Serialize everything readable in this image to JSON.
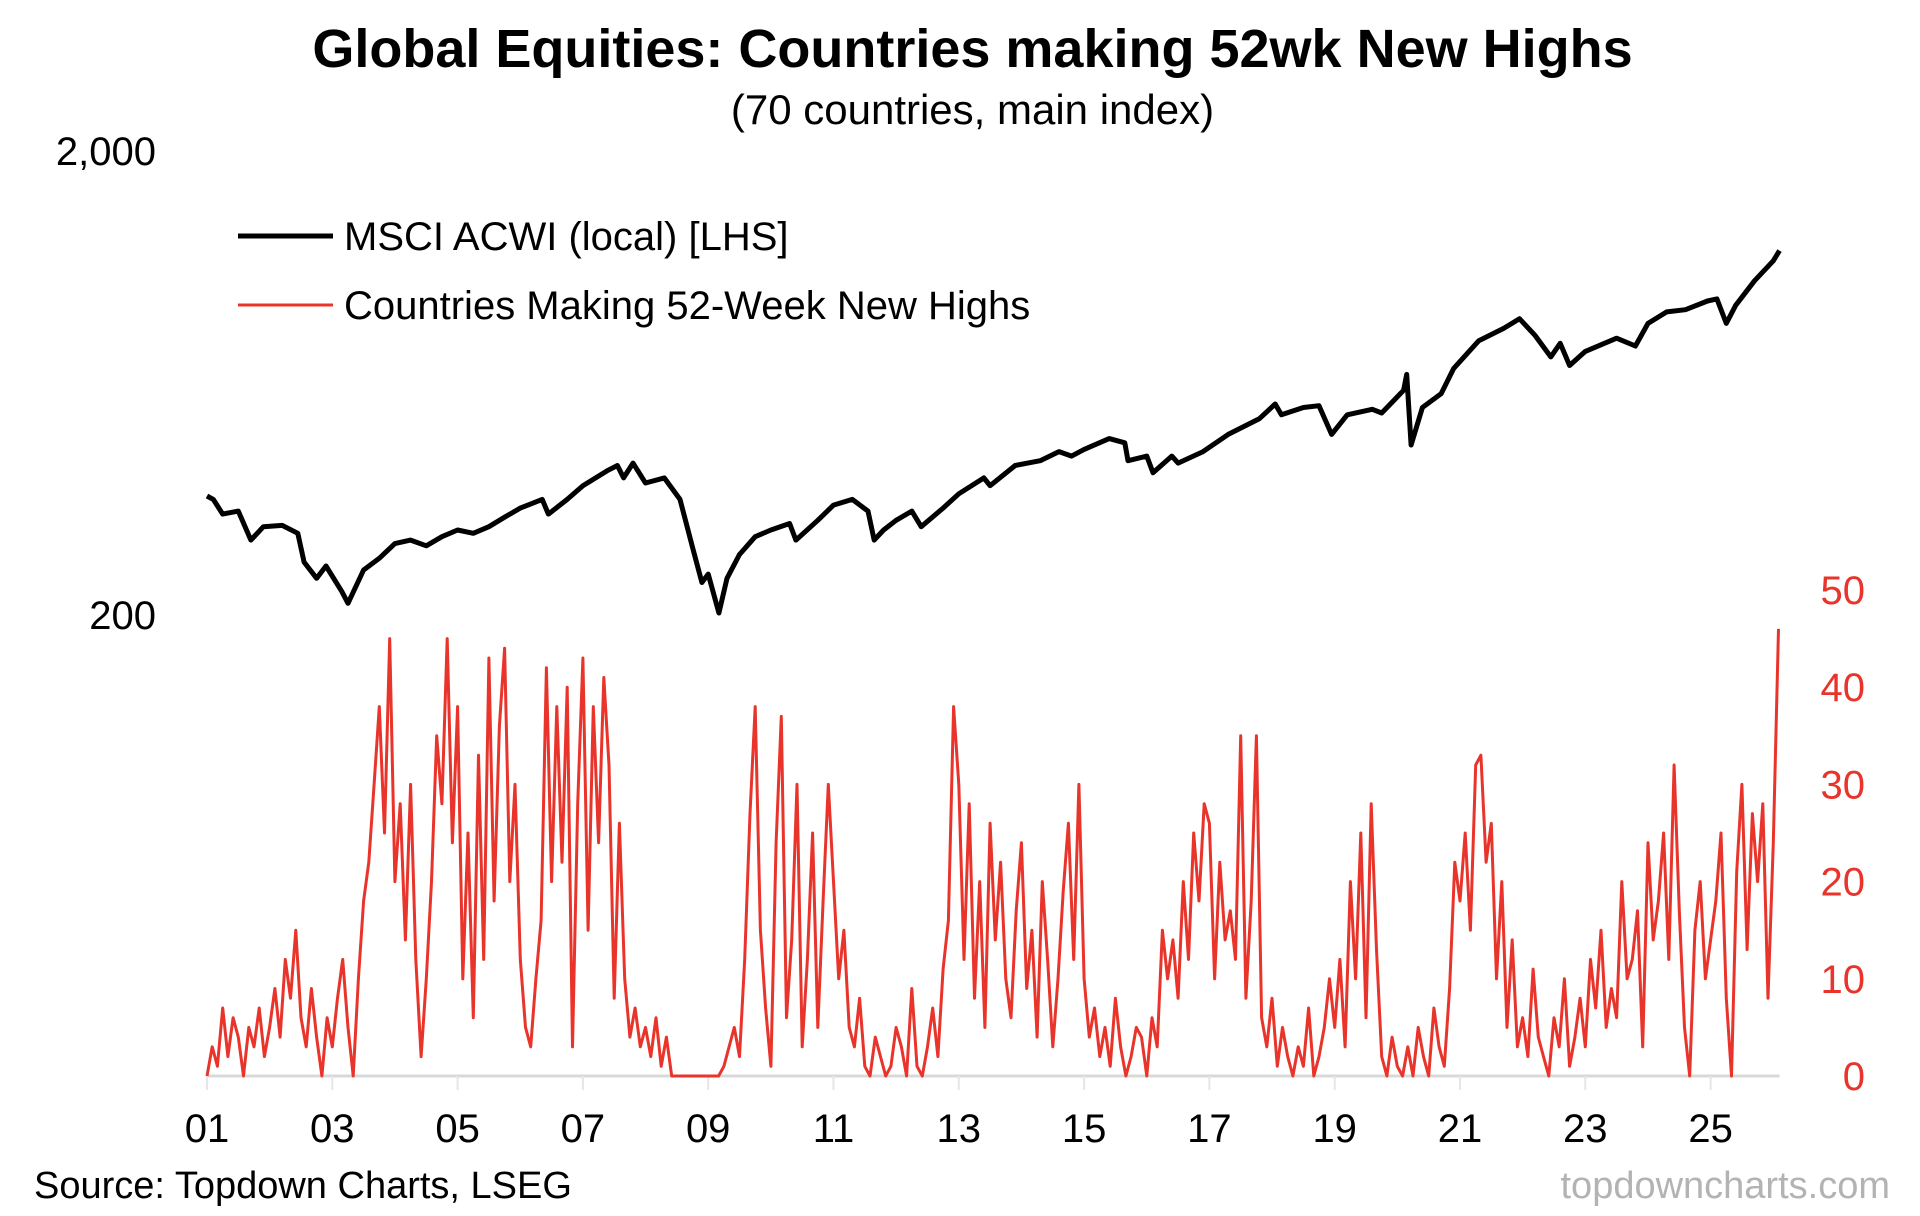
{
  "chart_data": {
    "type": "line",
    "title": "Global Equities: Countries making 52wk New Highs",
    "subtitle": "(70 countries, main index)",
    "source": "Source: Topdown Charts, LSEG",
    "watermark": "topdowncharts.com",
    "legend_placement": "top-left",
    "grid": false,
    "x_tick_labels": [
      "01",
      "03",
      "05",
      "07",
      "09",
      "11",
      "13",
      "15",
      "17",
      "19",
      "21",
      "23",
      "25"
    ],
    "x_ticks_years": [
      2001,
      2003,
      2005,
      2007,
      2009,
      2011,
      2013,
      2015,
      2017,
      2019,
      2021,
      2023,
      2025
    ],
    "left_axis": {
      "scale": "log",
      "range": [
        200,
        2000
      ],
      "tick_labels": [
        "2,000",
        "200"
      ],
      "ticks": [
        2000,
        200
      ]
    },
    "right_axis": {
      "scale": "linear",
      "range": [
        0,
        50
      ],
      "tick_labels": [
        "50",
        "40",
        "30",
        "20",
        "10",
        "0"
      ],
      "ticks": [
        50,
        40,
        30,
        20,
        10,
        0
      ],
      "color": "#e8342a"
    },
    "series": [
      {
        "name": "MSCI ACWI (local) [LHS]",
        "axis": "left",
        "color": "#000000",
        "points": [
          [
            2001.0,
            361
          ],
          [
            2001.1,
            355
          ],
          [
            2001.25,
            330
          ],
          [
            2001.5,
            335
          ],
          [
            2001.7,
            290
          ],
          [
            2001.9,
            310
          ],
          [
            2002.2,
            312
          ],
          [
            2002.45,
            300
          ],
          [
            2002.55,
            260
          ],
          [
            2002.75,
            240
          ],
          [
            2002.9,
            255
          ],
          [
            2003.15,
            225
          ],
          [
            2003.25,
            212
          ],
          [
            2003.5,
            250
          ],
          [
            2003.75,
            265
          ],
          [
            2004.0,
            285
          ],
          [
            2004.25,
            290
          ],
          [
            2004.5,
            282
          ],
          [
            2004.75,
            295
          ],
          [
            2005.0,
            305
          ],
          [
            2005.25,
            300
          ],
          [
            2005.5,
            310
          ],
          [
            2005.75,
            325
          ],
          [
            2006.0,
            340
          ],
          [
            2006.35,
            355
          ],
          [
            2006.45,
            330
          ],
          [
            2006.75,
            355
          ],
          [
            2007.0,
            380
          ],
          [
            2007.4,
            410
          ],
          [
            2007.55,
            420
          ],
          [
            2007.65,
            395
          ],
          [
            2007.8,
            425
          ],
          [
            2008.0,
            385
          ],
          [
            2008.3,
            395
          ],
          [
            2008.55,
            355
          ],
          [
            2008.75,
            280
          ],
          [
            2008.9,
            235
          ],
          [
            2009.0,
            245
          ],
          [
            2009.17,
            202
          ],
          [
            2009.3,
            240
          ],
          [
            2009.5,
            270
          ],
          [
            2009.75,
            295
          ],
          [
            2010.0,
            305
          ],
          [
            2010.3,
            315
          ],
          [
            2010.4,
            290
          ],
          [
            2010.75,
            320
          ],
          [
            2011.0,
            345
          ],
          [
            2011.3,
            355
          ],
          [
            2011.55,
            335
          ],
          [
            2011.65,
            290
          ],
          [
            2011.8,
            305
          ],
          [
            2012.0,
            320
          ],
          [
            2012.25,
            335
          ],
          [
            2012.4,
            310
          ],
          [
            2012.75,
            340
          ],
          [
            2013.0,
            365
          ],
          [
            2013.4,
            395
          ],
          [
            2013.5,
            380
          ],
          [
            2013.9,
            420
          ],
          [
            2014.3,
            430
          ],
          [
            2014.6,
            450
          ],
          [
            2014.8,
            440
          ],
          [
            2015.0,
            455
          ],
          [
            2015.4,
            480
          ],
          [
            2015.65,
            470
          ],
          [
            2015.7,
            430
          ],
          [
            2016.0,
            440
          ],
          [
            2016.1,
            405
          ],
          [
            2016.4,
            440
          ],
          [
            2016.5,
            425
          ],
          [
            2016.9,
            450
          ],
          [
            2017.3,
            490
          ],
          [
            2017.8,
            530
          ],
          [
            2018.05,
            570
          ],
          [
            2018.15,
            540
          ],
          [
            2018.5,
            560
          ],
          [
            2018.75,
            565
          ],
          [
            2018.95,
            490
          ],
          [
            2019.2,
            540
          ],
          [
            2019.6,
            555
          ],
          [
            2019.75,
            545
          ],
          [
            2020.1,
            610
          ],
          [
            2020.15,
            660
          ],
          [
            2020.22,
            465
          ],
          [
            2020.4,
            560
          ],
          [
            2020.7,
            600
          ],
          [
            2020.9,
            680
          ],
          [
            2021.3,
            780
          ],
          [
            2021.7,
            830
          ],
          [
            2021.95,
            870
          ],
          [
            2022.2,
            800
          ],
          [
            2022.45,
            720
          ],
          [
            2022.6,
            770
          ],
          [
            2022.75,
            690
          ],
          [
            2023.0,
            740
          ],
          [
            2023.5,
            790
          ],
          [
            2023.8,
            760
          ],
          [
            2024.0,
            850
          ],
          [
            2024.3,
            900
          ],
          [
            2024.6,
            910
          ],
          [
            2024.95,
            950
          ],
          [
            2025.1,
            960
          ],
          [
            2025.25,
            850
          ],
          [
            2025.4,
            930
          ],
          [
            2025.7,
            1050
          ],
          [
            2026.0,
            1160
          ],
          [
            2026.1,
            1220
          ]
        ]
      },
      {
        "name": "Countries Making 52-Week New Highs",
        "axis": "right",
        "color": "#e8342a",
        "start": "2001-01",
        "frequency": "monthly",
        "values": [
          0,
          3,
          1,
          7,
          2,
          6,
          4,
          0,
          5,
          3,
          7,
          2,
          5,
          9,
          4,
          12,
          8,
          15,
          6,
          3,
          9,
          4,
          0,
          6,
          3,
          8,
          12,
          5,
          0,
          10,
          18,
          22,
          30,
          38,
          25,
          45,
          20,
          28,
          14,
          30,
          12,
          2,
          10,
          20,
          35,
          28,
          45,
          24,
          38,
          10,
          25,
          6,
          33,
          12,
          43,
          18,
          36,
          44,
          20,
          30,
          12,
          5,
          3,
          10,
          16,
          42,
          20,
          38,
          22,
          40,
          3,
          28,
          43,
          15,
          38,
          24,
          41,
          32,
          8,
          26,
          10,
          4,
          7,
          3,
          5,
          2,
          6,
          1,
          4,
          0,
          0,
          0,
          0,
          0,
          0,
          0,
          0,
          0,
          0,
          1,
          3,
          5,
          2,
          12,
          27,
          38,
          15,
          7,
          1,
          24,
          37,
          6,
          14,
          30,
          3,
          12,
          25,
          5,
          18,
          30,
          20,
          10,
          15,
          5,
          3,
          8,
          1,
          0,
          4,
          2,
          0,
          1,
          5,
          3,
          0,
          9,
          1,
          0,
          3,
          7,
          2,
          11,
          16,
          38,
          30,
          12,
          28,
          8,
          20,
          5,
          26,
          14,
          22,
          10,
          6,
          17,
          24,
          9,
          15,
          4,
          20,
          12,
          3,
          10,
          19,
          26,
          12,
          30,
          10,
          4,
          7,
          2,
          5,
          1,
          8,
          3,
          0,
          2,
          5,
          4,
          0,
          6,
          3,
          15,
          10,
          14,
          8,
          20,
          12,
          25,
          18,
          28,
          26,
          10,
          22,
          14,
          17,
          12,
          35,
          8,
          18,
          35,
          6,
          3,
          8,
          1,
          5,
          2,
          0,
          3,
          1,
          7,
          0,
          2,
          5,
          10,
          5,
          12,
          3,
          20,
          10,
          25,
          6,
          28,
          13,
          2,
          0,
          4,
          1,
          0,
          3,
          0,
          5,
          2,
          0,
          7,
          3,
          1,
          9,
          22,
          18,
          25,
          15,
          32,
          33,
          22,
          26,
          10,
          20,
          5,
          14,
          3,
          6,
          2,
          11,
          4,
          2,
          0,
          6,
          3,
          10,
          1,
          4,
          8,
          3,
          12,
          7,
          15,
          5,
          9,
          6,
          20,
          10,
          12,
          17,
          3,
          24,
          14,
          18,
          25,
          12,
          32,
          17,
          5,
          0,
          15,
          20,
          10,
          14,
          18,
          25,
          8,
          0,
          21,
          30,
          13,
          27,
          20,
          28,
          8,
          24,
          46
        ]
      }
    ]
  }
}
